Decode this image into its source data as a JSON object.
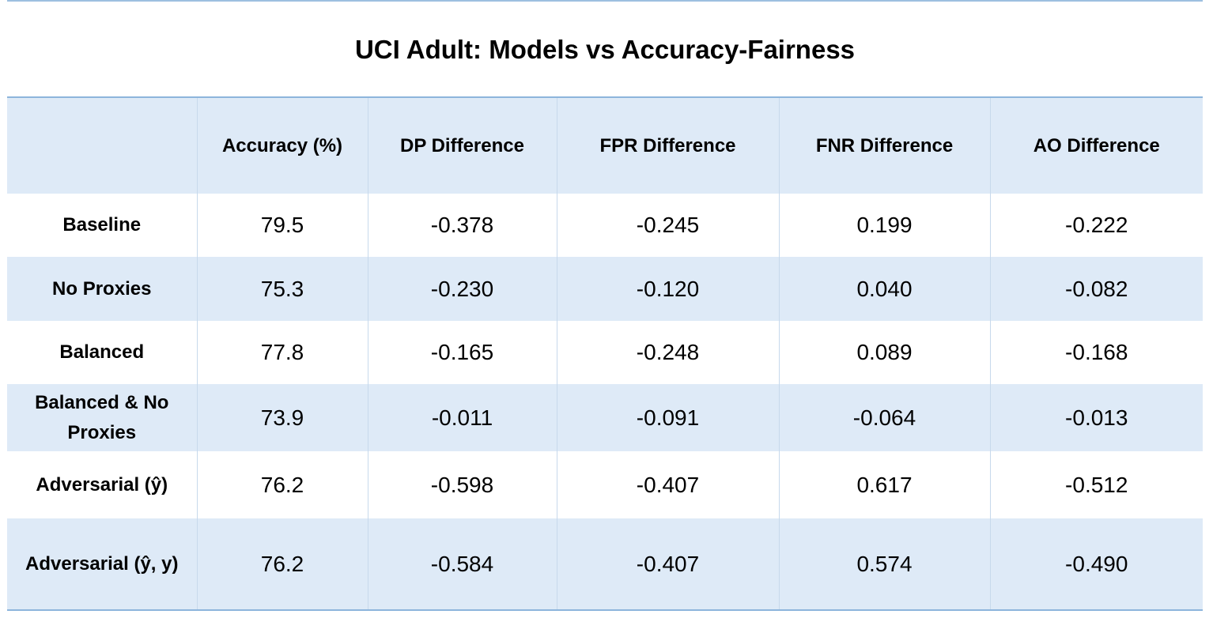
{
  "chart_data": {
    "type": "table",
    "title": "UCI Adult: Models vs Accuracy-Fairness",
    "columns": [
      "",
      "Accuracy (%)",
      "DP Difference",
      "FPR Difference",
      "FNR Difference",
      "AO Difference"
    ],
    "rows": [
      {
        "label": "Baseline",
        "values": [
          "79.5",
          "-0.378",
          "-0.245",
          "0.199",
          "-0.222"
        ]
      },
      {
        "label": "No Proxies",
        "values": [
          "75.3",
          "-0.230",
          "-0.120",
          "0.040",
          "-0.082"
        ]
      },
      {
        "label": "Balanced",
        "values": [
          "77.8",
          "-0.165",
          "-0.248",
          "0.089",
          "-0.168"
        ]
      },
      {
        "label": "Balanced & No Proxies",
        "values": [
          "73.9",
          "-0.011",
          "-0.091",
          "-0.064",
          "-0.013"
        ]
      },
      {
        "label": "Adversarial (ŷ)",
        "values": [
          "76.2",
          "-0.598",
          "-0.407",
          "0.617",
          "-0.512"
        ]
      },
      {
        "label": "Adversarial (ŷ, y)",
        "values": [
          "76.2",
          "-0.584",
          "-0.407",
          "0.574",
          "-0.490"
        ]
      }
    ]
  },
  "colors": {
    "header_fill": "#deeaf7",
    "rule": "#8db5dc"
  }
}
